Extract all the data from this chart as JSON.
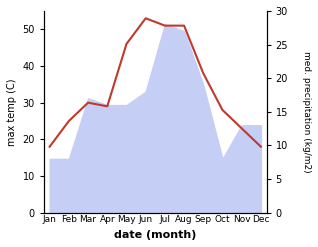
{
  "months": [
    "Jan",
    "Feb",
    "Mar",
    "Apr",
    "May",
    "Jun",
    "Jul",
    "Aug",
    "Sep",
    "Oct",
    "Nov",
    "Dec"
  ],
  "temp": [
    18,
    25,
    30,
    29,
    46,
    53,
    51,
    51,
    38,
    28,
    23,
    18
  ],
  "precip": [
    8,
    8,
    17,
    16,
    16,
    18,
    28,
    27,
    19,
    8,
    13,
    13
  ],
  "temp_color": "#c0392b",
  "precip_fill_color": "#c5cef5",
  "ylabel_left": "max temp (C)",
  "ylabel_right": "med. precipitation (kg/m2)",
  "xlabel": "date (month)",
  "ylim_left": [
    0,
    55
  ],
  "ylim_right": [
    0,
    30
  ],
  "yticks_left": [
    0,
    10,
    20,
    30,
    40,
    50
  ],
  "yticks_right": [
    0,
    5,
    10,
    15,
    20,
    25,
    30
  ],
  "bg_color": "#ffffff"
}
